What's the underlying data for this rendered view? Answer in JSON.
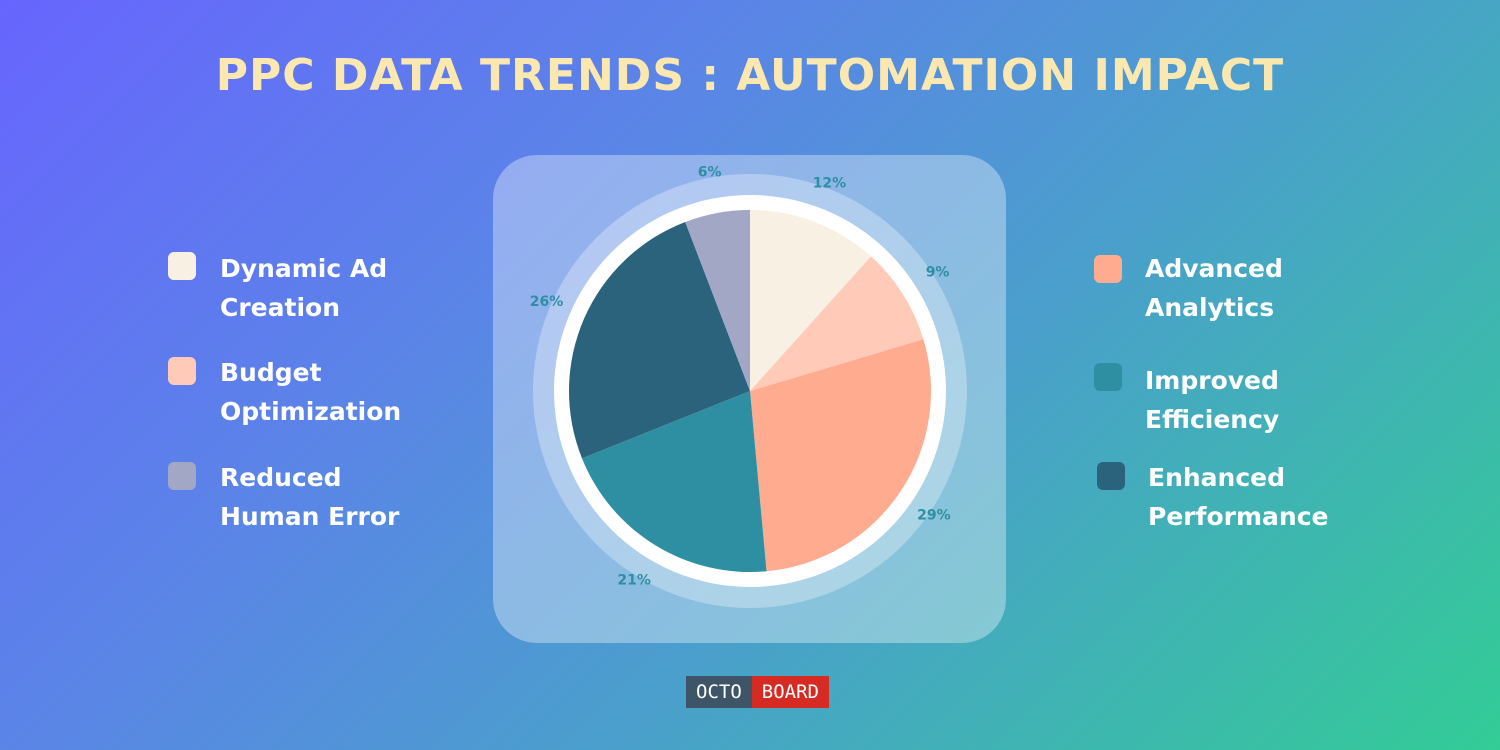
{
  "chart_data": {
    "type": "pie",
    "title": "PPC DATA TRENDS : AUTOMATION IMPACT",
    "categories": [
      "Dynamic Ad Creation",
      "Budget Optimization",
      "Advanced Analytics",
      "Improved Efficiency",
      "Enhanced Performance",
      "Reduced Human Error"
    ],
    "values": [
      12,
      9,
      29,
      21,
      26,
      6
    ],
    "value_labels": [
      "12%",
      "9%",
      "29%",
      "21%",
      "26%",
      "6%"
    ],
    "colors": [
      "#f8f1e3",
      "#ffcbb8",
      "#ffab90",
      "#2e8fa3",
      "#2b637d",
      "#a3a7c6"
    ]
  },
  "brand": {
    "left": "OCTO",
    "right": "BOARD"
  }
}
